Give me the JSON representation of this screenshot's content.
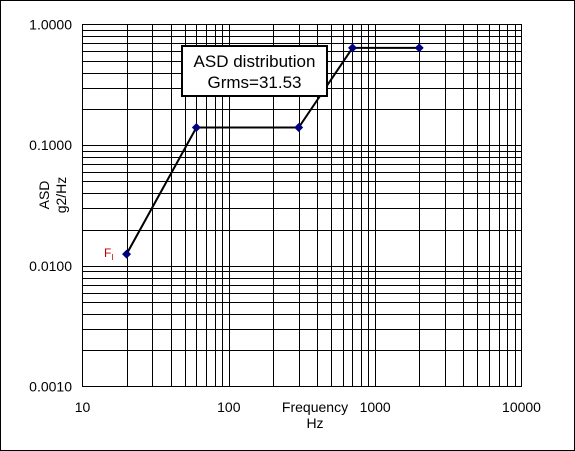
{
  "chart_data": {
    "type": "line",
    "title": "",
    "x_scale": "log",
    "y_scale": "log",
    "xlim": [
      10,
      10000
    ],
    "ylim": [
      0.001,
      1
    ],
    "grid": true,
    "xlabel": [
      "Frequency",
      "Hz"
    ],
    "ylabel": [
      "ASD",
      "g2/Hz"
    ],
    "x_tick_labels": [
      "10",
      "100",
      "1000",
      "10000"
    ],
    "y_tick_labels": [
      "1.0000",
      "0.1000",
      "0.0100",
      "0.0010"
    ],
    "series": [
      {
        "color": "#000080",
        "x": [
          20,
          60,
          300,
          700,
          2000
        ],
        "y": [
          0.0125,
          0.14,
          0.14,
          0.64,
          0.64
        ]
      }
    ],
    "annotation": {
      "lines": [
        "ASD distribution",
        "Grms=31.53"
      ]
    },
    "point_label": {
      "main": "F",
      "sub": "I",
      "color": "#c00000"
    }
  }
}
